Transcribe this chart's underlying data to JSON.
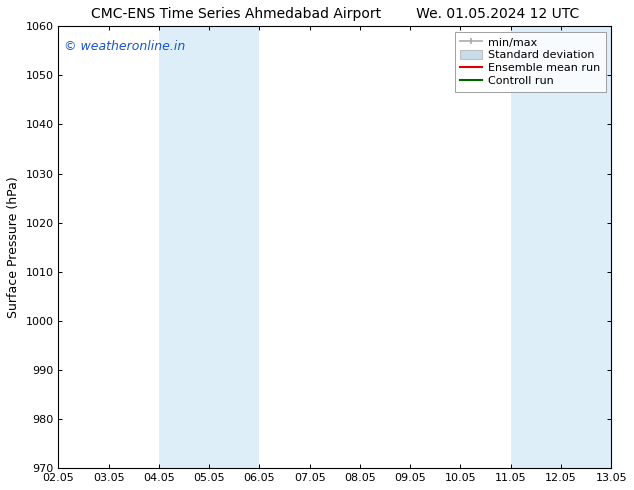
{
  "title": "CMC-ENS Time Series Ahmedabad Airport",
  "title_right": "We. 01.05.2024 12 UTC",
  "ylabel": "Surface Pressure (hPa)",
  "ylim": [
    970,
    1060
  ],
  "yticks": [
    970,
    980,
    990,
    1000,
    1010,
    1020,
    1030,
    1040,
    1050,
    1060
  ],
  "xlabels": [
    "02.05",
    "03.05",
    "04.05",
    "05.05",
    "06.05",
    "07.05",
    "08.05",
    "09.05",
    "10.05",
    "11.05",
    "12.05",
    "13.05"
  ],
  "x_positions": [
    0,
    1,
    2,
    3,
    4,
    5,
    6,
    7,
    8,
    9,
    10,
    11
  ],
  "shaded_regions": [
    {
      "xmin": 2,
      "xmax": 4,
      "color": "#ddeef8"
    },
    {
      "xmin": 9,
      "xmax": 11,
      "color": "#ddeef8"
    }
  ],
  "watermark_text": "© weatheronline.in",
  "watermark_color": "#1a56c4",
  "background_color": "#ffffff",
  "legend_items": [
    {
      "label": "min/max",
      "color": "#aaaaaa",
      "lw": 1.2
    },
    {
      "label": "Standard deviation",
      "color": "#c8dcea",
      "lw": 5
    },
    {
      "label": "Ensemble mean run",
      "color": "#dd0000",
      "lw": 1.5
    },
    {
      "label": "Controll run",
      "color": "#006600",
      "lw": 1.5
    }
  ],
  "font_size_title": 10,
  "font_size_ticks": 8,
  "font_size_ylabel": 9,
  "font_size_legend": 8,
  "font_size_watermark": 9
}
